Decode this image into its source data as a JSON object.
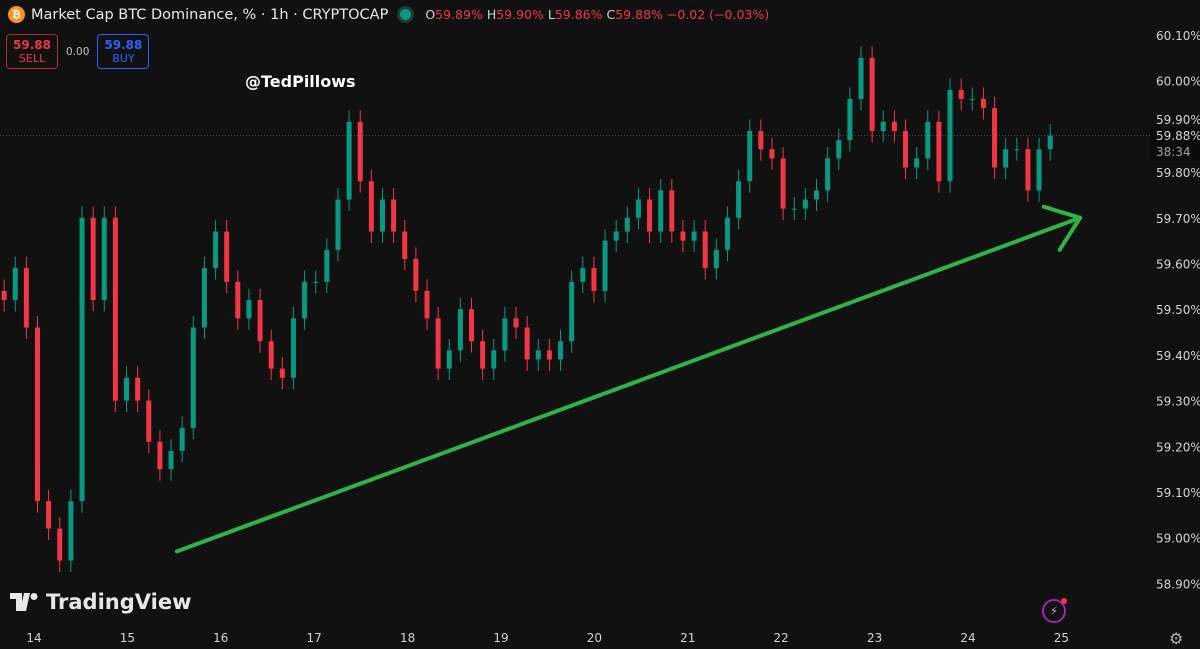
{
  "header": {
    "symbol_icon": "bitcoin-icon",
    "title": "Market Cap BTC Dominance, % · 1h · CRYPTOCAP",
    "status_color": "#089981",
    "ohlc": {
      "o_label": "O",
      "o": "59.89%",
      "h_label": "H",
      "h": "59.90%",
      "l_label": "L",
      "l": "59.86%",
      "c_label": "C",
      "c": "59.88%",
      "change": "−0.02 (−0.03%)"
    }
  },
  "trade": {
    "sell_price": "59.88",
    "sell_label": "SELL",
    "spread": "0.00",
    "buy_price": "59.88",
    "buy_label": "BUY"
  },
  "watermark": "@TedPillows",
  "logo": "TradingView",
  "price_label": {
    "value": "59.88%",
    "countdown": "38:34"
  },
  "colors": {
    "up": "#089981",
    "down": "#f23645",
    "trendline": "#2fb344",
    "background": "#111111"
  },
  "chart_data": {
    "type": "candlestick",
    "interval": "1h",
    "x_ticks": [
      "14",
      "15",
      "16",
      "17",
      "18",
      "19",
      "20",
      "21",
      "22",
      "23",
      "24",
      "25"
    ],
    "y_ticks": [
      "60.10%",
      "60.00%",
      "59.90%",
      "59.80%",
      "59.70%",
      "59.60%",
      "59.50%",
      "59.40%",
      "59.30%",
      "59.20%",
      "59.10%",
      "59.00%",
      "58.90%"
    ],
    "ylim": [
      58.86,
      60.14
    ],
    "xlim": [
      13.64,
      25.9
    ],
    "last_price": 59.88,
    "closes": [
      59.52,
      59.59,
      59.46,
      59.08,
      59.02,
      58.95,
      59.08,
      59.7,
      59.52,
      59.7,
      59.3,
      59.35,
      59.3,
      59.21,
      59.15,
      59.19,
      59.24,
      59.46,
      59.59,
      59.67,
      59.56,
      59.48,
      59.52,
      59.43,
      59.37,
      59.35,
      59.48,
      59.56,
      59.56,
      59.63,
      59.74,
      59.91,
      59.78,
      59.67,
      59.74,
      59.67,
      59.61,
      59.54,
      59.48,
      59.37,
      59.41,
      59.5,
      59.43,
      59.37,
      59.41,
      59.48,
      59.46,
      59.39,
      59.41,
      59.39,
      59.43,
      59.56,
      59.59,
      59.54,
      59.65,
      59.67,
      59.7,
      59.74,
      59.67,
      59.76,
      59.67,
      59.65,
      59.67,
      59.59,
      59.63,
      59.7,
      59.78,
      59.89,
      59.85,
      59.83,
      59.72,
      59.72,
      59.74,
      59.76,
      59.83,
      59.87,
      59.96,
      60.05,
      59.89,
      59.91,
      59.89,
      59.81,
      59.83,
      59.91,
      59.78,
      59.98,
      59.96,
      59.96,
      59.94,
      59.81,
      59.85,
      59.85,
      59.76,
      59.85,
      59.88
    ],
    "first_x": 13.68,
    "last_x": 24.88,
    "trendline": {
      "from": {
        "x": 15.53,
        "y": 58.97
      },
      "to": {
        "x": 25.2,
        "y": 59.7
      },
      "arrow": true
    }
  }
}
